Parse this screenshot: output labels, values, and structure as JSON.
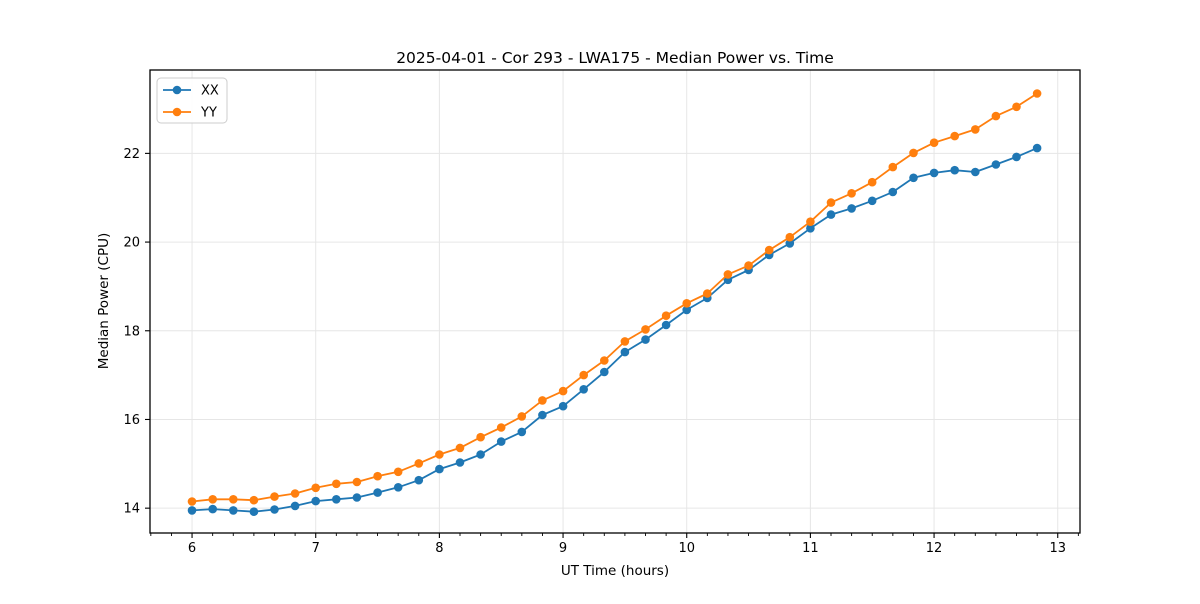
{
  "chart_data": {
    "type": "line",
    "title": "2025-04-01 - Cor 293 - LWA175 - Median Power vs. Time",
    "xlabel": "UT Time (hours)",
    "ylabel": "Median Power (CPU)",
    "x": [
      6.0,
      6.1667,
      6.3333,
      6.5,
      6.6667,
      6.8333,
      7.0,
      7.1667,
      7.3333,
      7.5,
      7.6667,
      7.8333,
      8.0,
      8.1667,
      8.3333,
      8.5,
      8.6667,
      8.8333,
      9.0,
      9.1667,
      9.3333,
      9.5,
      9.6667,
      9.8333,
      10.0,
      10.1667,
      10.3333,
      10.5,
      10.6667,
      10.8333,
      11.0,
      11.1667,
      11.3333,
      11.5,
      11.6667,
      11.8333,
      12.0,
      12.1667,
      12.3333,
      12.5,
      12.6667,
      12.8333
    ],
    "series": [
      {
        "name": "XX",
        "color": "#1f77b4",
        "values": [
          13.95,
          13.98,
          13.95,
          13.92,
          13.97,
          14.05,
          14.16,
          14.2,
          14.24,
          14.35,
          14.47,
          14.63,
          14.88,
          15.03,
          15.21,
          15.5,
          15.72,
          16.1,
          16.3,
          16.68,
          17.07,
          17.52,
          17.8,
          18.13,
          18.47,
          18.74,
          19.15,
          19.37,
          19.71,
          19.97,
          20.31,
          20.62,
          20.76,
          20.93,
          21.13,
          21.45,
          21.56,
          21.62,
          21.58,
          21.75,
          21.92,
          22.12
        ]
      },
      {
        "name": "YY",
        "color": "#ff7f0e",
        "values": [
          14.15,
          14.2,
          14.2,
          14.18,
          14.26,
          14.33,
          14.46,
          14.55,
          14.59,
          14.72,
          14.82,
          15.01,
          15.21,
          15.36,
          15.6,
          15.82,
          16.07,
          16.43,
          16.64,
          17.0,
          17.33,
          17.76,
          18.03,
          18.34,
          18.62,
          18.84,
          19.27,
          19.47,
          19.82,
          20.11,
          20.46,
          20.89,
          21.1,
          21.35,
          21.69,
          22.01,
          22.24,
          22.39,
          22.54,
          22.84,
          23.05,
          23.35
        ]
      }
    ],
    "xlim": [
      5.66,
      13.18
    ],
    "ylim": [
      13.44,
      23.88
    ],
    "xticks": [
      6,
      7,
      8,
      9,
      10,
      11,
      12,
      13
    ],
    "yticks": [
      14,
      16,
      18,
      20,
      22
    ],
    "x_minor_tick_step": 0.16667,
    "grid": true,
    "grid_color": "#e6e6e6",
    "background": "#ffffff",
    "legend_position": "upper left",
    "marker": "circle"
  }
}
